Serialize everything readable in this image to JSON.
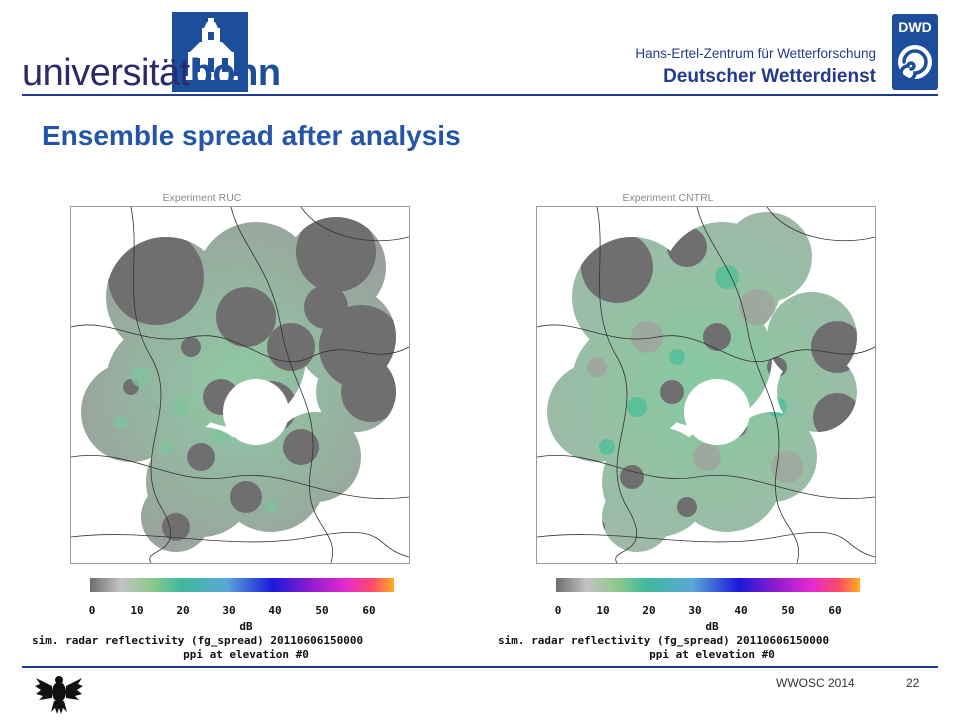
{
  "header": {
    "university_logo_light": "universität",
    "university_logo_bold": "bonn",
    "institute_line": "Hans-Ertel-Zentrum für Wetterforschung",
    "agency_name": "Deutscher Wetterdienst",
    "agency_logo_text": "DWD"
  },
  "title": "Ensemble spread after analysis",
  "panels": [
    {
      "experiment_label": "Experiment RUC",
      "colorbar": {
        "ticks": [
          "0",
          "10",
          "20",
          "30",
          "40",
          "50",
          "60"
        ],
        "unit": "dB",
        "caption_line1": "sim. radar reflectivity (fg_spread) 20110606150000",
        "caption_line2": "ppi at elevation #0"
      }
    },
    {
      "experiment_label": "Experiment CNTRL",
      "colorbar": {
        "ticks": [
          "0",
          "10",
          "20",
          "30",
          "40",
          "50",
          "60"
        ],
        "unit": "dB",
        "caption_line1": "sim. radar reflectivity (fg_spread) 20110606150000",
        "caption_line2": "ppi at elevation #0"
      }
    }
  ],
  "footer": {
    "event": "WWOSC 2014",
    "page_number": "22"
  },
  "colors": {
    "title_blue": "#2456a8",
    "rule_navy": "#1d3a8f",
    "spread_gray": "#6f6f6f",
    "spread_green": "#7fc39c"
  }
}
